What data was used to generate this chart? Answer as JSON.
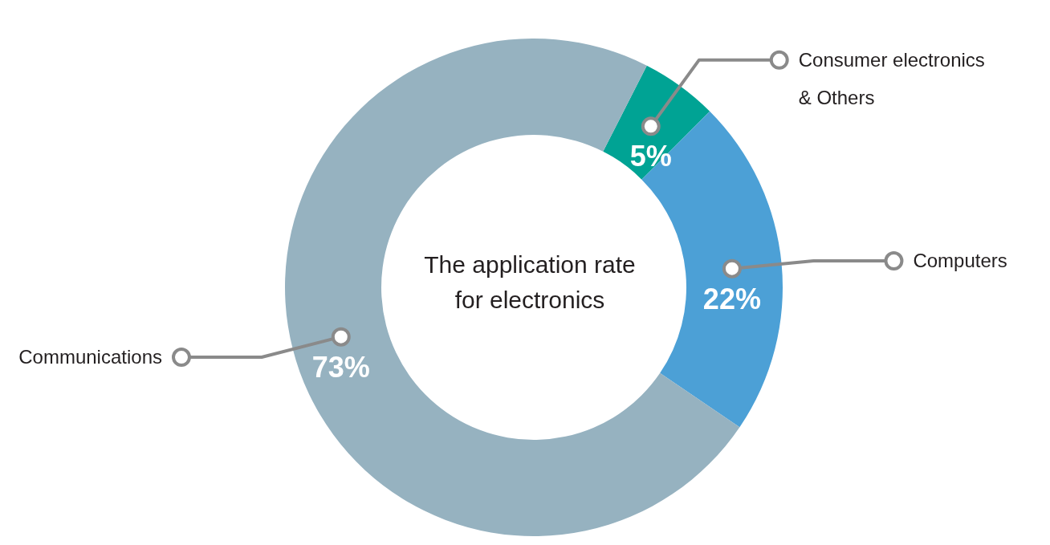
{
  "chart_data": {
    "type": "donut",
    "title": "The application rate for electronics",
    "categories": [
      "Consumer electronics & Others",
      "Computers",
      "Communications"
    ],
    "values": [
      5,
      22,
      73
    ],
    "value_labels": [
      "5%",
      "22%",
      "73%"
    ],
    "colors": [
      "#00a394",
      "#4ca0d6",
      "#96b2c0"
    ]
  }
}
